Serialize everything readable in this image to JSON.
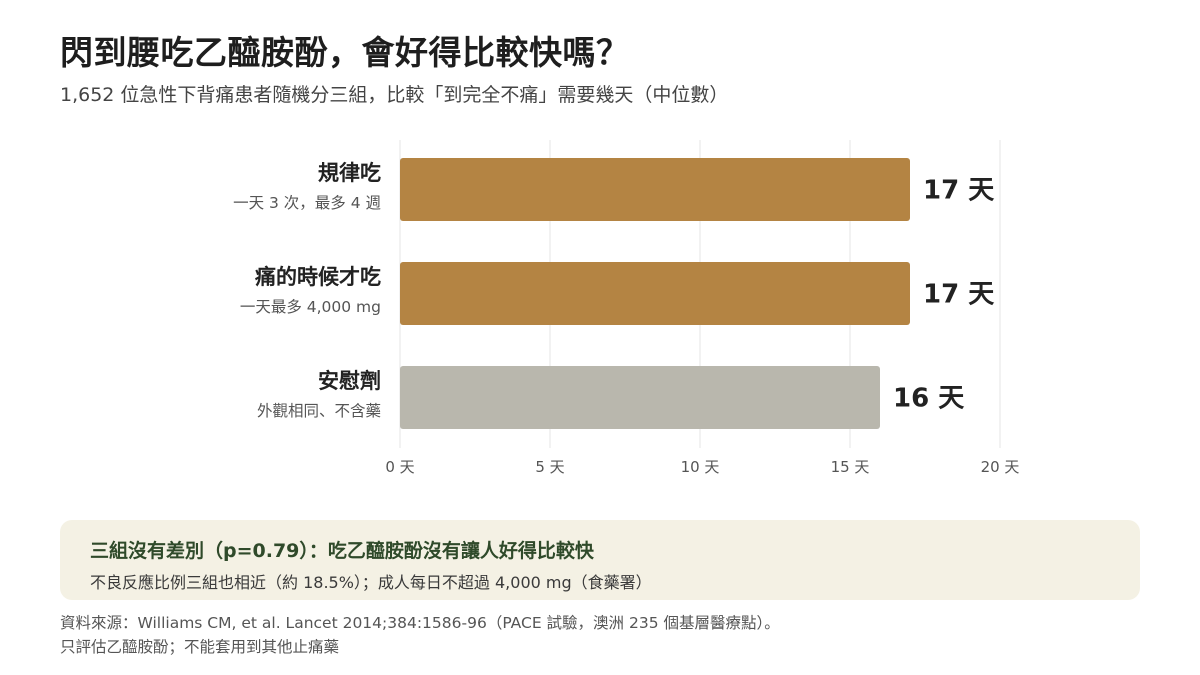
{
  "header": {
    "title": "閃到腰吃乙醯胺酚，會好得比較快嗎？",
    "subtitle": "1,652 位急性下背痛患者隨機分三組，比較「到完全不痛」需要幾天（中位數）"
  },
  "chart_data": {
    "type": "bar",
    "orientation": "horizontal",
    "categories": [
      "規律吃",
      "痛的時候才吃",
      "安慰劑"
    ],
    "category_notes": [
      "一天 3 次，最多 4 週",
      "一天最多 4,000 mg",
      "外觀相同、不含藥"
    ],
    "values": [
      17,
      17,
      16
    ],
    "value_labels": [
      "17 天",
      "17 天",
      "16 天"
    ],
    "xlim": [
      0,
      20
    ],
    "xticks": [
      0,
      5,
      10,
      15,
      20
    ],
    "xtick_labels": [
      "0 天",
      "5 天",
      "10 天",
      "15 天",
      "20 天"
    ],
    "grid": true,
    "colors": [
      "#b48443",
      "#b48443",
      "#b9b7ad"
    ]
  },
  "callout": {
    "headline": "三組沒有差別（p=0.79）：吃乙醯胺酚沒有讓人好得比較快",
    "body": "不良反應比例三組也相近（約 18.5%）；成人每日不超過 4,000 mg（食藥署）"
  },
  "source": {
    "line1": "資料來源：Williams CM, et al. Lancet 2014;384:1586-96（PACE 試驗，澳洲 235 個基層醫療點）。",
    "line2": "只評估乙醯胺酚；不能套用到其他止痛藥"
  }
}
